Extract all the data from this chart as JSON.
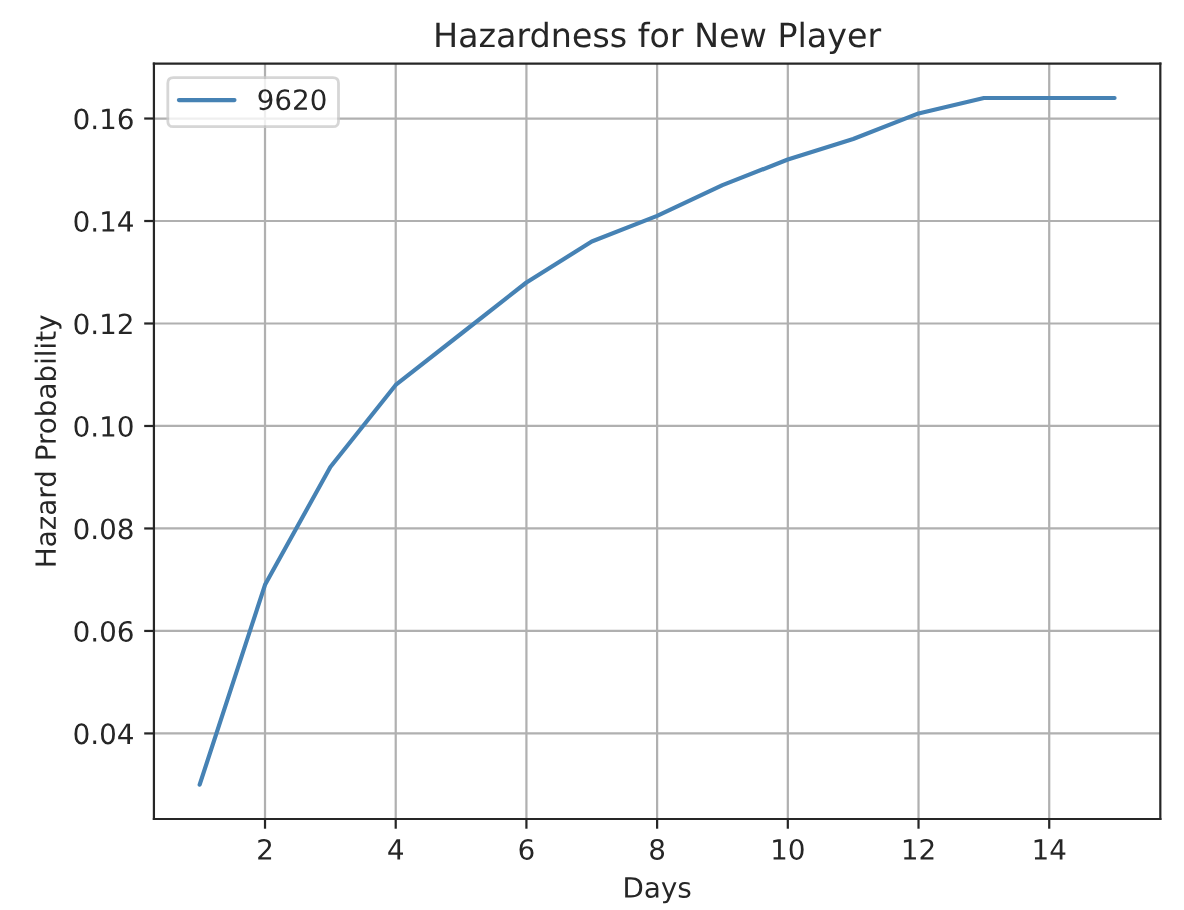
{
  "chart_data": {
    "type": "line",
    "title": "Hazardness for New Player",
    "xlabel": "Days",
    "ylabel": "Hazard Probability",
    "x": [
      1,
      2,
      3,
      4,
      5,
      6,
      7,
      8,
      9,
      10,
      11,
      12,
      13,
      14,
      15
    ],
    "series": [
      {
        "name": "9620",
        "color": "#4682b4",
        "values": [
          0.03,
          0.069,
          0.092,
          0.108,
          0.118,
          0.128,
          0.136,
          0.141,
          0.147,
          0.152,
          0.156,
          0.161,
          0.164,
          0.164,
          0.164
        ]
      }
    ],
    "xlim": [
      0.3,
      15.7
    ],
    "xticks": [
      2,
      4,
      6,
      8,
      10,
      12,
      14
    ],
    "ylim": [
      0.0233,
      0.1707
    ],
    "yticks": [
      0.04,
      0.06,
      0.08,
      {
        "value": 0.1,
        "label": "0.10"
      },
      0.12,
      0.14,
      0.16
    ],
    "grid": true,
    "legend": "top left"
  }
}
